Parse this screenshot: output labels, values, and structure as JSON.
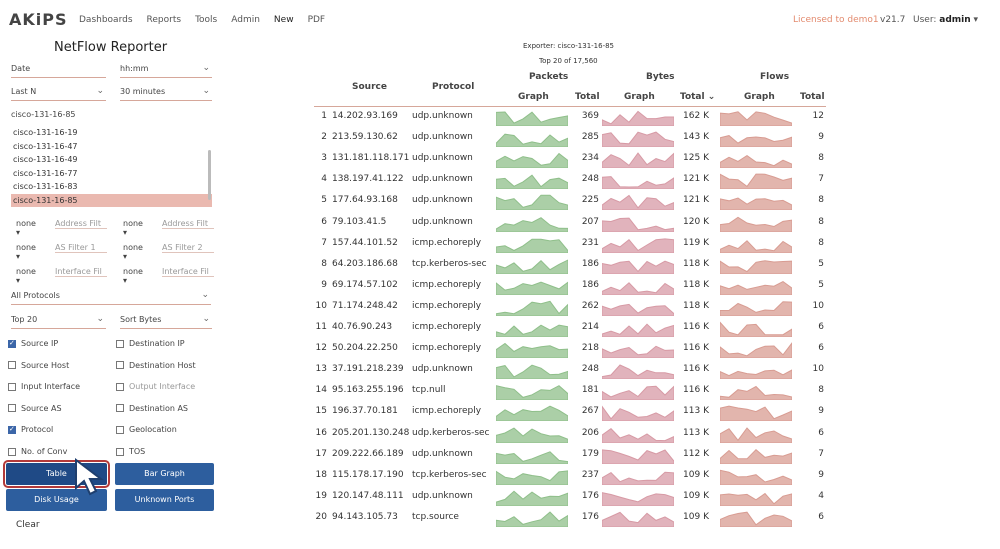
{
  "nav": {
    "logo": "AKiPS",
    "items": [
      "Dashboards",
      "Reports",
      "Tools",
      "Admin",
      "New",
      "PDF"
    ],
    "licensed": "Licensed to demo1",
    "version": "v21.7",
    "user_label": "User:",
    "user_name": "admin"
  },
  "panel": {
    "title": "NetFlow Reporter",
    "date_label": "Date",
    "time_placeholder": "hh:mm",
    "range_type": "Last N",
    "range_value": "30 minutes",
    "device_header": "cisco-131-16-85",
    "devices": [
      "cisco-131-16-19",
      "cisco-131-16-47",
      "cisco-131-16-49",
      "cisco-131-16-77",
      "cisco-131-16-83",
      "cisco-131-16-85"
    ],
    "selected_device_index": 5,
    "filters": [
      {
        "op1": "none",
        "ph1": "Address Filt",
        "op2": "none",
        "ph2": "Address Filt"
      },
      {
        "op1": "none",
        "ph1": "AS Filter 1",
        "op2": "none",
        "ph2": "AS Filter 2"
      },
      {
        "op1": "none",
        "ph1": "Interface Fil",
        "op2": "none",
        "ph2": "Interface Fil"
      }
    ],
    "protocols": "All Protocols",
    "top_n": "Top 20",
    "sort": "Sort Bytes",
    "checkboxes_left": [
      {
        "label": "Source IP",
        "checked": true
      },
      {
        "label": "Source Host",
        "checked": false
      },
      {
        "label": "Input Interface",
        "checked": false
      },
      {
        "label": "Source AS",
        "checked": false
      },
      {
        "label": "Protocol",
        "checked": true
      },
      {
        "label": "No. of Conv",
        "checked": false
      }
    ],
    "checkboxes_right": [
      {
        "label": "Destination IP",
        "checked": false
      },
      {
        "label": "Destination Host",
        "checked": false
      },
      {
        "label": "Output Interface",
        "checked": false,
        "dim": true
      },
      {
        "label": "Destination AS",
        "checked": false
      },
      {
        "label": "Geolocation",
        "checked": false
      },
      {
        "label": "TOS",
        "checked": false
      }
    ],
    "buttons": {
      "table": "Table",
      "bar_graph": "Bar Graph",
      "disk_usage": "Disk Usage",
      "unknown_ports": "Unknown Ports"
    },
    "clear": "Clear"
  },
  "report": {
    "exporter": "Exporter: cisco-131-16-85",
    "topn": "Top 20 of 17,560",
    "headers": {
      "source": "Source",
      "protocol": "Protocol",
      "packets": "Packets",
      "bytes": "Bytes",
      "flows": "Flows",
      "graph": "Graph",
      "total": "Total",
      "total_sorted": "Total ⌄"
    },
    "colors": {
      "packets": "#8fbf8a",
      "bytes": "#d79aa5",
      "flows": "#d89c92"
    },
    "rows": [
      {
        "n": "1",
        "source": "14.202.93.169",
        "protocol": "udp.unknown",
        "packets": "369",
        "bytes": "162 K",
        "flows": "12"
      },
      {
        "n": "2",
        "source": "213.59.130.62",
        "protocol": "udp.unknown",
        "packets": "285",
        "bytes": "143 K",
        "flows": "9"
      },
      {
        "n": "3",
        "source": "131.181.118.171",
        "protocol": "udp.unknown",
        "packets": "234",
        "bytes": "125 K",
        "flows": "8"
      },
      {
        "n": "4",
        "source": "138.197.41.122",
        "protocol": "udp.unknown",
        "packets": "248",
        "bytes": "121 K",
        "flows": "7"
      },
      {
        "n": "5",
        "source": "177.64.93.168",
        "protocol": "udp.unknown",
        "packets": "225",
        "bytes": "121 K",
        "flows": "8"
      },
      {
        "n": "6",
        "source": "79.103.41.5",
        "protocol": "udp.unknown",
        "packets": "207",
        "bytes": "120 K",
        "flows": "8"
      },
      {
        "n": "7",
        "source": "157.44.101.52",
        "protocol": "icmp.echoreply",
        "packets": "231",
        "bytes": "119 K",
        "flows": "8"
      },
      {
        "n": "8",
        "source": "64.203.186.68",
        "protocol": "tcp.kerberos-sec",
        "packets": "186",
        "bytes": "118 K",
        "flows": "5"
      },
      {
        "n": "9",
        "source": "69.174.57.102",
        "protocol": "icmp.echoreply",
        "packets": "186",
        "bytes": "118 K",
        "flows": "5"
      },
      {
        "n": "10",
        "source": "71.174.248.42",
        "protocol": "icmp.echoreply",
        "packets": "262",
        "bytes": "118 K",
        "flows": "10"
      },
      {
        "n": "11",
        "source": "40.76.90.243",
        "protocol": "icmp.echoreply",
        "packets": "214",
        "bytes": "116 K",
        "flows": "6"
      },
      {
        "n": "12",
        "source": "50.204.22.250",
        "protocol": "icmp.echoreply",
        "packets": "218",
        "bytes": "116 K",
        "flows": "6"
      },
      {
        "n": "13",
        "source": "37.191.218.239",
        "protocol": "udp.unknown",
        "packets": "248",
        "bytes": "116 K",
        "flows": "10"
      },
      {
        "n": "14",
        "source": "95.163.255.196",
        "protocol": "tcp.null",
        "packets": "181",
        "bytes": "116 K",
        "flows": "8"
      },
      {
        "n": "15",
        "source": "196.37.70.181",
        "protocol": "icmp.echoreply",
        "packets": "267",
        "bytes": "113 K",
        "flows": "9"
      },
      {
        "n": "16",
        "source": "205.201.130.248",
        "protocol": "udp.kerberos-sec",
        "packets": "206",
        "bytes": "113 K",
        "flows": "6"
      },
      {
        "n": "17",
        "source": "209.222.66.189",
        "protocol": "udp.unknown",
        "packets": "179",
        "bytes": "112 K",
        "flows": "7"
      },
      {
        "n": "18",
        "source": "115.178.17.190",
        "protocol": "tcp.kerberos-sec",
        "packets": "237",
        "bytes": "109 K",
        "flows": "9"
      },
      {
        "n": "19",
        "source": "120.147.48.111",
        "protocol": "udp.unknown",
        "packets": "176",
        "bytes": "109 K",
        "flows": "4"
      },
      {
        "n": "20",
        "source": "94.143.105.73",
        "protocol": "tcp.source",
        "packets": "176",
        "bytes": "109 K",
        "flows": "6"
      }
    ]
  }
}
